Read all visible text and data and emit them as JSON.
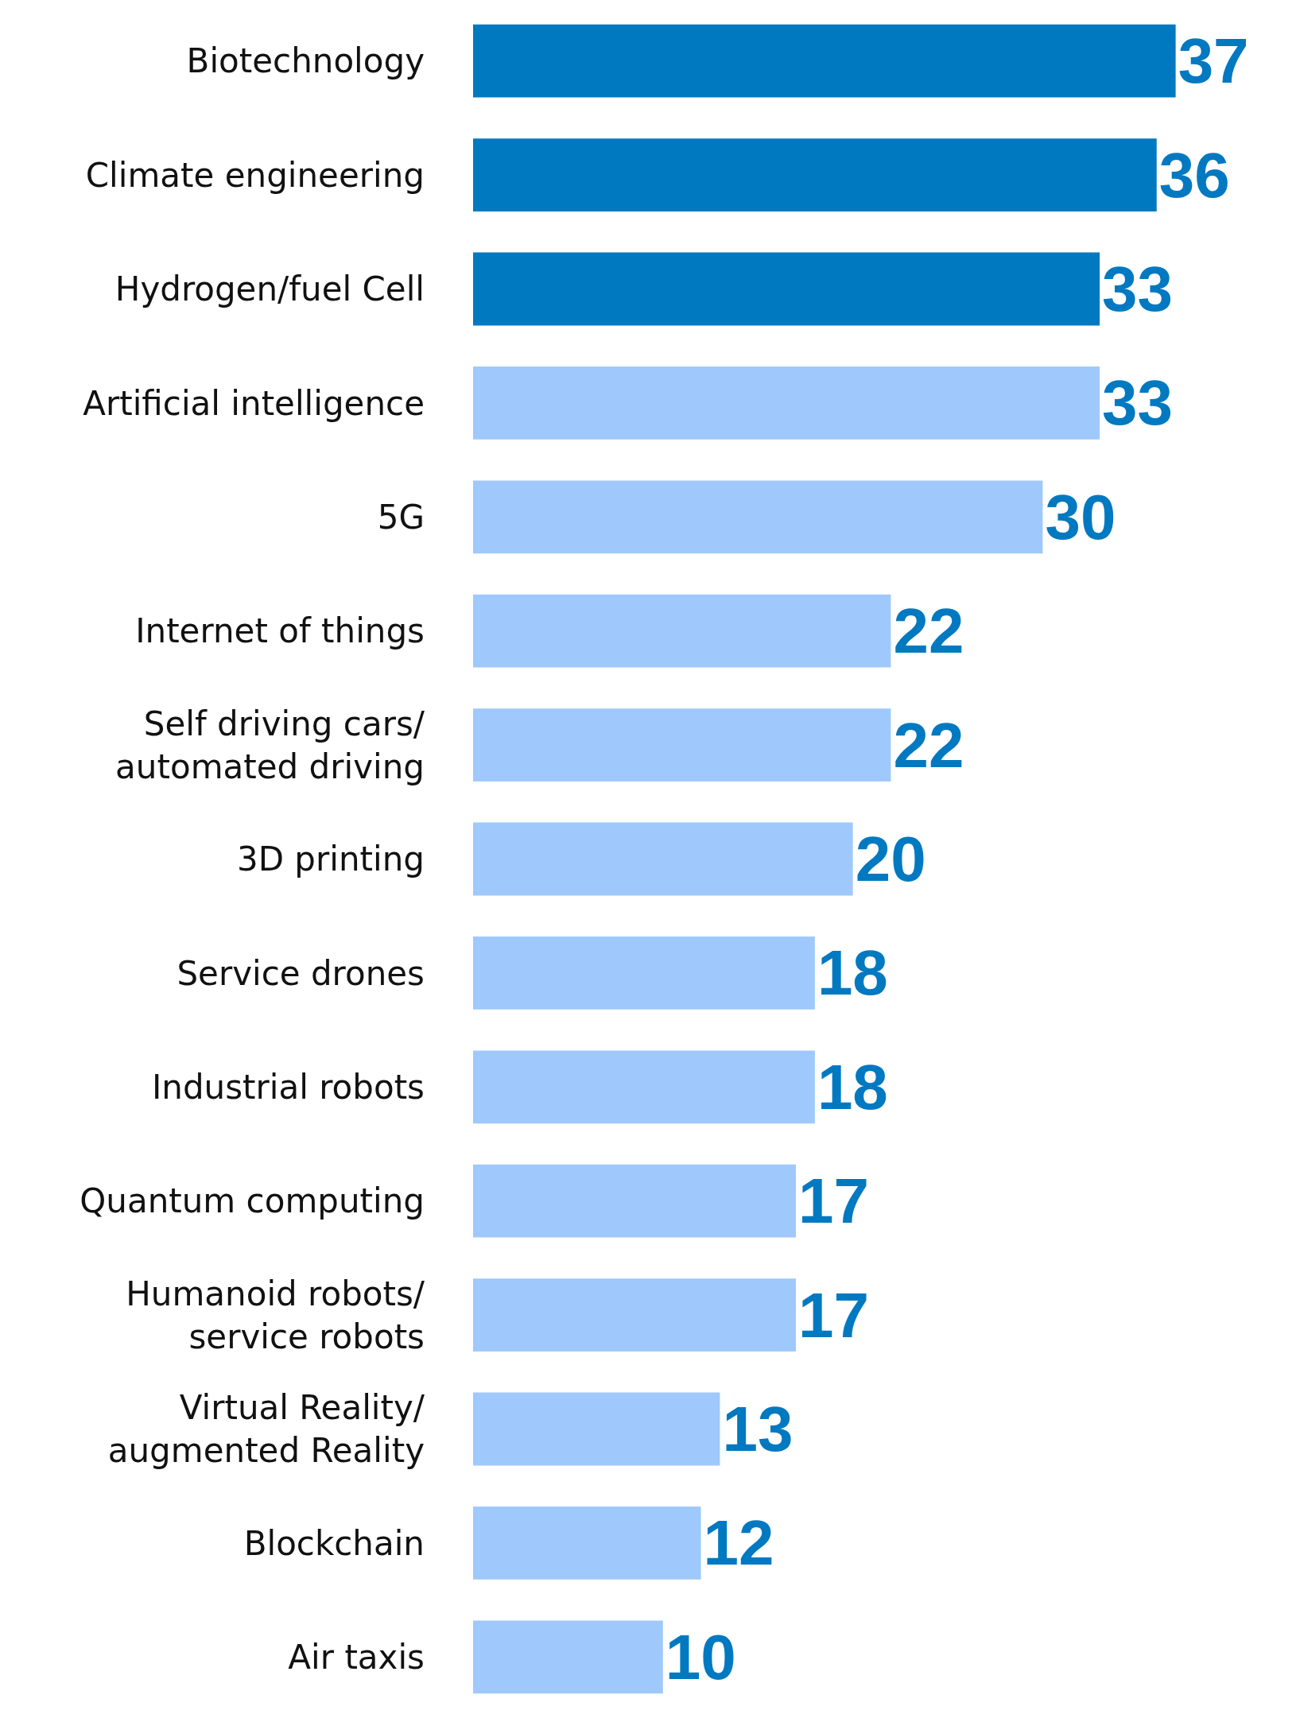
{
  "chart_data": {
    "type": "bar",
    "orientation": "horizontal",
    "data_labels": true,
    "legend": false,
    "categories": [
      "Biotechnology",
      "Climate engineering",
      "Hydrogen/fuel Cell",
      "Artificial intelligence",
      "5G",
      "Internet of things",
      "Self driving cars/\nautomated driving",
      "3D printing",
      "Service drones",
      "Industrial robots",
      "Quantum computing",
      "Humanoid robots/\nservice robots",
      "Virtual Reality/\naugmented Reality",
      "Blockchain",
      "Air taxis"
    ],
    "values": [
      37,
      36,
      33,
      33,
      30,
      22,
      22,
      20,
      18,
      18,
      17,
      17,
      13,
      12,
      10
    ],
    "colors": [
      "#0079c1",
      "#0079c1",
      "#0079c1",
      "#9fc9fd",
      "#9fc9fd",
      "#9fc9fd",
      "#9fc9fd",
      "#9fc9fd",
      "#9fc9fd",
      "#9fc9fd",
      "#9fc9fd",
      "#9fc9fd",
      "#9fc9fd",
      "#9fc9fd",
      "#9fc9fd"
    ]
  }
}
